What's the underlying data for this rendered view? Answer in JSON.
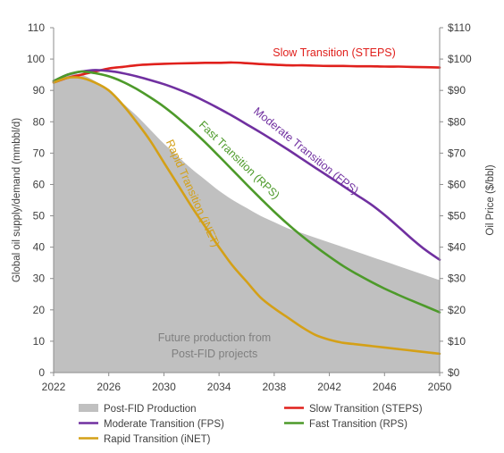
{
  "chart_data": {
    "type": "line",
    "x": [
      2022,
      2023,
      2024,
      2025,
      2026,
      2027,
      2028,
      2029,
      2030,
      2031,
      2032,
      2033,
      2034,
      2035,
      2036,
      2037,
      2038,
      2039,
      2040,
      2041,
      2042,
      2043,
      2044,
      2045,
      2046,
      2047,
      2048,
      2049,
      2050
    ],
    "xticks": [
      "2022",
      "2026",
      "2030",
      "2034",
      "2038",
      "2042",
      "2046",
      "2050"
    ],
    "xlim": [
      2022,
      2050
    ],
    "ylabel": "Global oil supply/demand (mmbbl/d)",
    "ylim": [
      0,
      110
    ],
    "yticks": [
      "0",
      "10",
      "20",
      "30",
      "40",
      "50",
      "60",
      "70",
      "80",
      "90",
      "100",
      "110"
    ],
    "y2label": "Oil Price ($/bbl)",
    "y2lim": [
      0,
      110
    ],
    "y2ticks": [
      "$0",
      "$10",
      "$20",
      "$30",
      "$40",
      "$50",
      "$60",
      "$70",
      "$80",
      "$90",
      "$100",
      "$110"
    ],
    "area": {
      "name": "Post-FID Production",
      "color": "#c0c0c0",
      "values": [
        93,
        95,
        95,
        93,
        90,
        86,
        82,
        77.5,
        73,
        69,
        65,
        61.5,
        58,
        55,
        52.5,
        50,
        48,
        46,
        44.5,
        43,
        41.5,
        40,
        38.5,
        37,
        35.5,
        34,
        32.5,
        31,
        29.5
      ]
    },
    "area_note": [
      "Future production from",
      "Post-FID projects"
    ],
    "series": [
      {
        "name": "Slow Transition (STEPS)",
        "color": "#e0201c",
        "values": [
          92.5,
          94,
          95,
          96,
          97,
          97.5,
          98,
          98.3,
          98.5,
          98.6,
          98.7,
          98.8,
          98.8,
          98.9,
          98.7,
          98.4,
          98.2,
          98,
          98,
          97.9,
          97.8,
          97.8,
          97.7,
          97.7,
          97.6,
          97.6,
          97.5,
          97.4,
          97.3
        ]
      },
      {
        "name": "Moderate Transition (FPS)",
        "color": "#7030a0",
        "values": [
          93,
          95,
          96,
          96.5,
          96.2,
          95.5,
          94.5,
          93.3,
          92,
          90.4,
          88.6,
          86.5,
          84.2,
          81.8,
          79.2,
          76.6,
          73.9,
          71.1,
          68.2,
          65.3,
          62.4,
          59.5,
          56.6,
          53.7,
          50.3,
          46.5,
          42.6,
          39,
          36
        ]
      },
      {
        "name": "Fast Transition (RPS)",
        "color": "#4d9a2a",
        "values": [
          93,
          95,
          96,
          95.5,
          94.5,
          92.8,
          90.5,
          87.8,
          84.8,
          81.3,
          77.5,
          73.4,
          69,
          64.5,
          60,
          55.6,
          51.3,
          47.3,
          43.6,
          40.2,
          37,
          34,
          31.4,
          29,
          26.8,
          24.8,
          22.9,
          21.1,
          19.2
        ]
      },
      {
        "name": "Rapid Transition (iNET)",
        "color": "#d4a017",
        "values": [
          92.5,
          94,
          94,
          92.5,
          90,
          85.5,
          80,
          74,
          67,
          60,
          53,
          46.5,
          40,
          34,
          29,
          24,
          20.5,
          17.5,
          14.5,
          12,
          10.5,
          9.5,
          9,
          8.5,
          8,
          7.5,
          7,
          6.5,
          6
        ]
      }
    ],
    "annotations": [
      {
        "text": "Slow Transition (STEPS)",
        "series": "Slow Transition (STEPS)"
      },
      {
        "text": "Moderate Transition (FPS)",
        "series": "Moderate Transition (FPS)"
      },
      {
        "text": "Fast Transition (RPS)",
        "series": "Fast Transition (RPS)"
      },
      {
        "text": "Rapid Transition (iNET)",
        "series": "Rapid Transition (iNET)"
      }
    ],
    "legend": {
      "position": "bottom",
      "entries": [
        "Post-FID Production",
        "Slow Transition (STEPS)",
        "Moderate Transition (FPS)",
        "Fast Transition (RPS)",
        "Rapid Transition (iNET)"
      ]
    },
    "grid": false
  }
}
